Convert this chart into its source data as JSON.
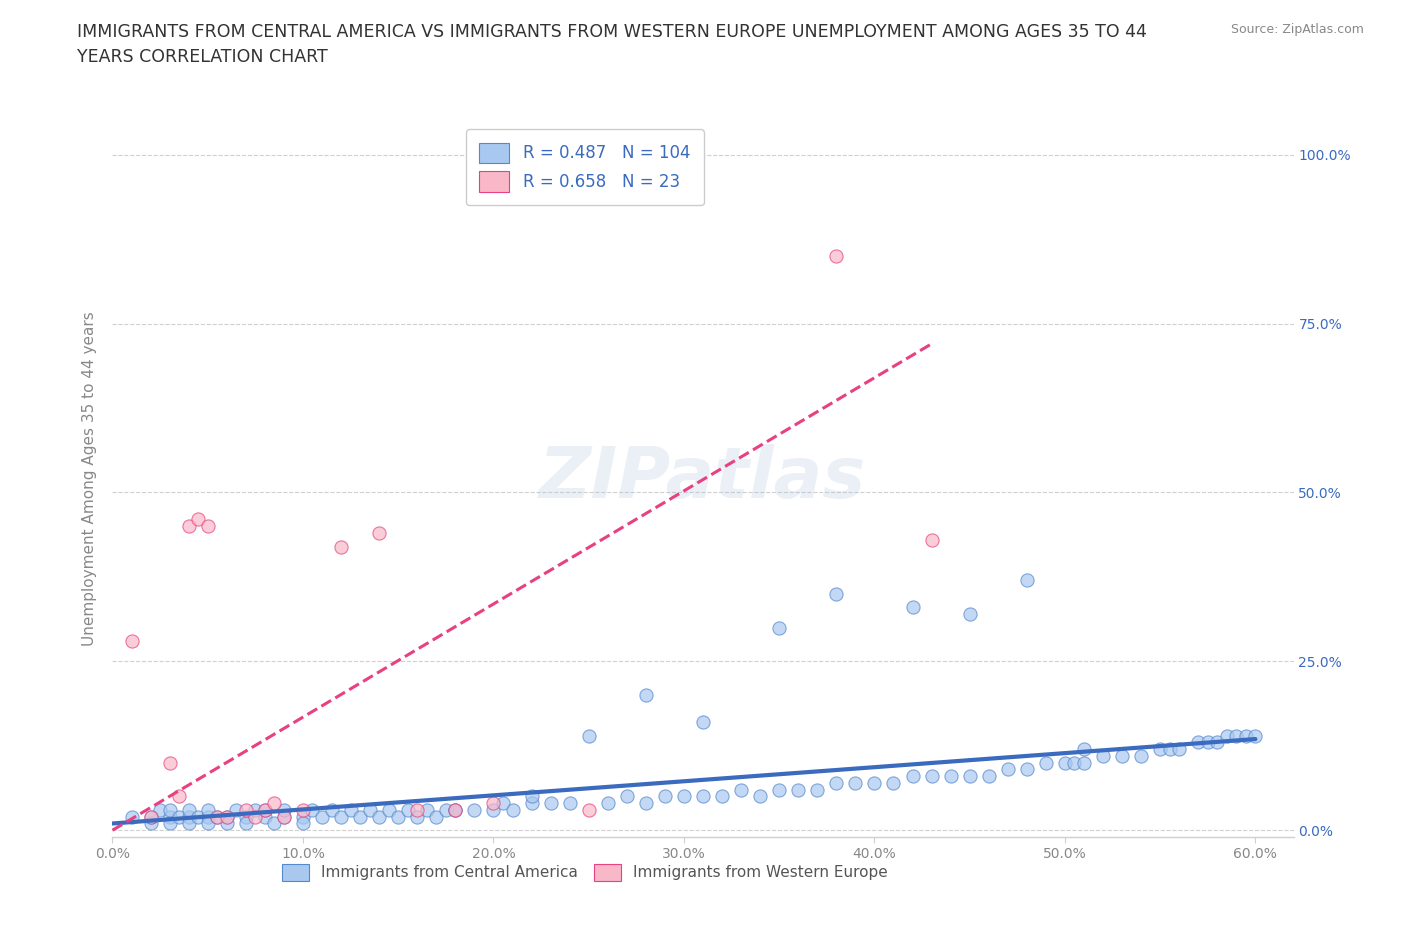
{
  "title_line1": "IMMIGRANTS FROM CENTRAL AMERICA VS IMMIGRANTS FROM WESTERN EUROPE UNEMPLOYMENT AMONG AGES 35 TO 44",
  "title_line2": "YEARS CORRELATION CHART",
  "source": "Source: ZipAtlas.com",
  "xlabel_ticks": [
    "0.0%",
    "10.0%",
    "20.0%",
    "30.0%",
    "40.0%",
    "50.0%",
    "60.0%"
  ],
  "ylabel_ticks": [
    "0.0%",
    "25.0%",
    "50.0%",
    "75.0%",
    "100.0%"
  ],
  "ylabel_label": "Unemployment Among Ages 35 to 44 years",
  "xlim": [
    0.0,
    0.62
  ],
  "ylim": [
    -0.01,
    1.05
  ],
  "legend_blue_r": "0.487",
  "legend_blue_n": "104",
  "legend_pink_r": "0.658",
  "legend_pink_n": "23",
  "blue_scatter_x": [
    0.01,
    0.02,
    0.025,
    0.02,
    0.03,
    0.03,
    0.03,
    0.035,
    0.04,
    0.04,
    0.04,
    0.045,
    0.05,
    0.05,
    0.05,
    0.055,
    0.06,
    0.06,
    0.065,
    0.07,
    0.07,
    0.075,
    0.08,
    0.08,
    0.085,
    0.09,
    0.09,
    0.1,
    0.1,
    0.105,
    0.11,
    0.115,
    0.12,
    0.125,
    0.13,
    0.135,
    0.14,
    0.145,
    0.15,
    0.155,
    0.16,
    0.165,
    0.17,
    0.175,
    0.18,
    0.19,
    0.2,
    0.205,
    0.21,
    0.22,
    0.23,
    0.24,
    0.25,
    0.26,
    0.27,
    0.28,
    0.29,
    0.3,
    0.31,
    0.32,
    0.33,
    0.34,
    0.35,
    0.36,
    0.37,
    0.38,
    0.39,
    0.4,
    0.41,
    0.42,
    0.43,
    0.44,
    0.45,
    0.46,
    0.47,
    0.48,
    0.49,
    0.5,
    0.505,
    0.51,
    0.52,
    0.53,
    0.54,
    0.55,
    0.555,
    0.56,
    0.57,
    0.575,
    0.58,
    0.585,
    0.59,
    0.595,
    0.6,
    0.35,
    0.38,
    0.42,
    0.45,
    0.28,
    0.22,
    0.48,
    0.51,
    0.31,
    0.18
  ],
  "blue_scatter_y": [
    0.02,
    0.01,
    0.03,
    0.02,
    0.02,
    0.01,
    0.03,
    0.02,
    0.02,
    0.01,
    0.03,
    0.02,
    0.02,
    0.01,
    0.03,
    0.02,
    0.02,
    0.01,
    0.03,
    0.02,
    0.01,
    0.03,
    0.02,
    0.03,
    0.01,
    0.02,
    0.03,
    0.02,
    0.01,
    0.03,
    0.02,
    0.03,
    0.02,
    0.03,
    0.02,
    0.03,
    0.02,
    0.03,
    0.02,
    0.03,
    0.02,
    0.03,
    0.02,
    0.03,
    0.03,
    0.03,
    0.03,
    0.04,
    0.03,
    0.04,
    0.04,
    0.04,
    0.14,
    0.04,
    0.05,
    0.04,
    0.05,
    0.05,
    0.05,
    0.05,
    0.06,
    0.05,
    0.06,
    0.06,
    0.06,
    0.07,
    0.07,
    0.07,
    0.07,
    0.08,
    0.08,
    0.08,
    0.08,
    0.08,
    0.09,
    0.09,
    0.1,
    0.1,
    0.1,
    0.1,
    0.11,
    0.11,
    0.11,
    0.12,
    0.12,
    0.12,
    0.13,
    0.13,
    0.13,
    0.14,
    0.14,
    0.14,
    0.14,
    0.3,
    0.35,
    0.33,
    0.32,
    0.2,
    0.05,
    0.37,
    0.12,
    0.16,
    0.03
  ],
  "pink_scatter_x": [
    0.01,
    0.02,
    0.03,
    0.035,
    0.04,
    0.045,
    0.05,
    0.055,
    0.06,
    0.07,
    0.075,
    0.08,
    0.085,
    0.09,
    0.1,
    0.12,
    0.14,
    0.16,
    0.18,
    0.2,
    0.25,
    0.38,
    0.43
  ],
  "pink_scatter_y": [
    0.28,
    0.02,
    0.1,
    0.05,
    0.45,
    0.46,
    0.45,
    0.02,
    0.02,
    0.03,
    0.02,
    0.03,
    0.04,
    0.02,
    0.03,
    0.42,
    0.44,
    0.03,
    0.03,
    0.04,
    0.03,
    0.85,
    0.43
  ],
  "blue_line_x": [
    0.0,
    0.6
  ],
  "blue_line_y": [
    0.01,
    0.135
  ],
  "pink_line_x": [
    0.0,
    0.43
  ],
  "pink_line_y": [
    0.0,
    0.72
  ],
  "blue_color": "#a8c8f0",
  "pink_color": "#f8b8c8",
  "blue_line_color": "#3a6bbf",
  "pink_line_color": "#e84080",
  "blue_edge_color": "#5588cc",
  "pink_edge_color": "#e84080",
  "grid_color": "#d0d0d0",
  "bg_color": "#ffffff",
  "title_fontsize": 12.5,
  "axis_label_fontsize": 11,
  "tick_fontsize": 10,
  "tick_color": "#888888",
  "label_color_right": "#3a6bbf",
  "title_color": "#333333"
}
